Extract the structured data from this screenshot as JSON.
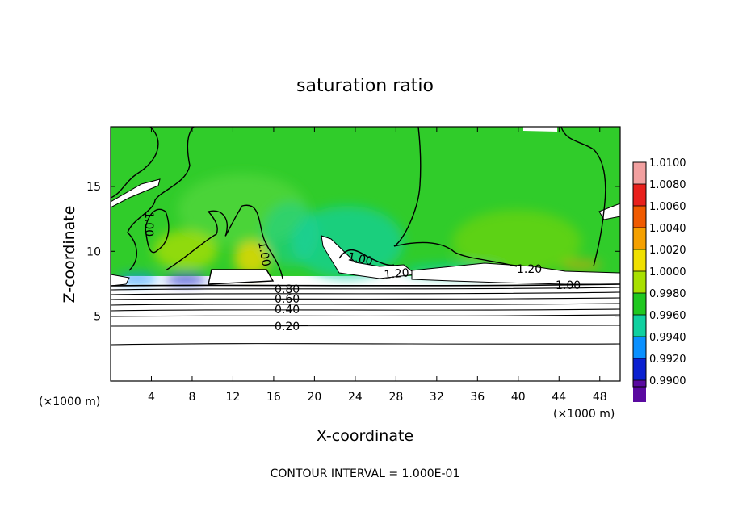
{
  "chart_data": {
    "type": "heatmap",
    "title": "saturation ratio",
    "xlabel": "X-coordinate",
    "ylabel": "Z-coordinate",
    "x_unit": "(×1000 m)",
    "y_unit": "(×1000 m)",
    "xlim": [
      0,
      50
    ],
    "ylim": [
      0,
      19.6
    ],
    "x_ticks": [
      4,
      8,
      12,
      16,
      20,
      24,
      28,
      32,
      36,
      40,
      44,
      48
    ],
    "y_ticks": [
      5,
      10,
      15
    ],
    "footer": "CONTOUR INTERVAL = 1.000E-01",
    "colorbar": {
      "levels": [
        "1.0100",
        "1.0080",
        "1.0060",
        "1.0040",
        "1.0020",
        "1.0000",
        "0.9980",
        "0.9960",
        "0.9940",
        "0.9920",
        "0.9900"
      ],
      "colors": [
        "#f2a0a0",
        "#e8201c",
        "#f05a00",
        "#f5a000",
        "#f0e000",
        "#a8e000",
        "#20c820",
        "#10d0a0",
        "#0a90ff",
        "#0a20d0",
        "#5a0aa0"
      ]
    },
    "contours": [
      {
        "label": "0.20",
        "z": 4.5
      },
      {
        "label": "0.40",
        "z": 5.8
      },
      {
        "label": "0.60",
        "z": 6.6
      },
      {
        "label": "0.80",
        "z": 7.2
      },
      {
        "label": "1.00",
        "x": 15.8,
        "z": 10.5
      },
      {
        "label": "1.00",
        "x": 4.5,
        "z": 13.0
      },
      {
        "label": "1.00",
        "x": 24.0,
        "z": 9.8
      },
      {
        "label": "1.00",
        "x": 44.5,
        "z": 7.8
      },
      {
        "label": "1.20",
        "x": 29.0,
        "z": 8.1
      },
      {
        "label": "1.20",
        "x": 41.5,
        "z": 8.5
      }
    ]
  }
}
